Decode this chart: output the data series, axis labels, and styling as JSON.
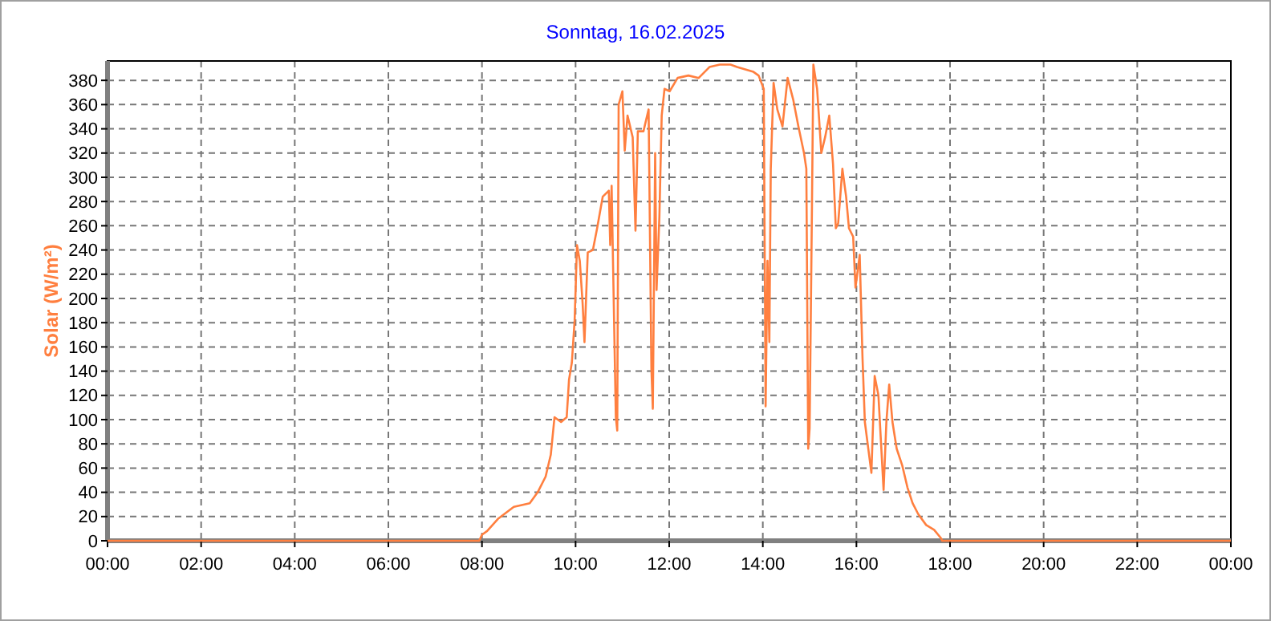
{
  "chart_data": {
    "type": "line",
    "title": "Sonntag, 16.02.2025",
    "ylabel": "Solar (W/m²)",
    "xlim": [
      0,
      24
    ],
    "ylim": [
      0,
      396
    ],
    "xticks": [
      {
        "value": 0,
        "label": "00:00"
      },
      {
        "value": 2,
        "label": "02:00"
      },
      {
        "value": 4,
        "label": "04:00"
      },
      {
        "value": 6,
        "label": "06:00"
      },
      {
        "value": 8,
        "label": "08:00"
      },
      {
        "value": 10,
        "label": "10:00"
      },
      {
        "value": 12,
        "label": "12:00"
      },
      {
        "value": 14,
        "label": "14:00"
      },
      {
        "value": 16,
        "label": "16:00"
      },
      {
        "value": 18,
        "label": "18:00"
      },
      {
        "value": 20,
        "label": "20:00"
      },
      {
        "value": 22,
        "label": "22:00"
      },
      {
        "value": 24,
        "label": "00:00"
      }
    ],
    "yticks": [
      0,
      20,
      40,
      60,
      80,
      100,
      120,
      140,
      160,
      180,
      200,
      220,
      240,
      260,
      280,
      300,
      320,
      340,
      360,
      380
    ],
    "grid": true,
    "marker": "none",
    "line_style": "solid",
    "series": [
      {
        "color": "#ff7f3f",
        "x": [
          0,
          7.94,
          8.0,
          8.11,
          8.34,
          8.68,
          9.02,
          9.19,
          9.36,
          9.47,
          9.55,
          9.69,
          9.81,
          9.86,
          9.92,
          9.98,
          10.03,
          10.09,
          10.15,
          10.19,
          10.26,
          10.37,
          10.46,
          10.58,
          10.71,
          10.74,
          10.77,
          10.86,
          10.89,
          10.92,
          11.0,
          11.05,
          11.11,
          11.22,
          11.28,
          11.33,
          11.45,
          11.56,
          11.62,
          11.65,
          11.7,
          11.73,
          11.79,
          11.84,
          11.9,
          12.01,
          12.18,
          12.41,
          12.63,
          12.86,
          13.08,
          13.31,
          13.45,
          13.8,
          13.91,
          14.02,
          14.06,
          14.1,
          14.14,
          14.17,
          14.23,
          14.31,
          14.42,
          14.53,
          14.65,
          14.76,
          14.88,
          14.93,
          14.97,
          15.0,
          15.05,
          15.08,
          15.16,
          15.25,
          15.33,
          15.42,
          15.5,
          15.56,
          15.61,
          15.7,
          15.78,
          15.84,
          15.93,
          15.98,
          16.07,
          16.13,
          16.18,
          16.24,
          16.32,
          16.39,
          16.47,
          16.58,
          16.64,
          16.7,
          16.77,
          16.86,
          16.98,
          17.09,
          17.2,
          17.32,
          17.49,
          17.66,
          17.81,
          17.83,
          24
        ],
        "values": [
          0,
          0,
          5,
          8,
          18,
          28,
          31,
          40,
          53,
          71,
          102,
          98,
          102,
          133,
          147,
          182,
          244,
          231,
          196,
          164,
          238,
          240,
          258,
          284,
          289,
          244,
          293,
          102,
          91,
          360,
          371,
          322,
          351,
          333,
          256,
          338,
          338,
          356,
          142,
          109,
          320,
          207,
          267,
          351,
          373,
          371,
          382,
          384,
          382,
          391,
          393,
          393,
          391,
          387,
          384,
          373,
          111,
          231,
          164,
          307,
          378,
          356,
          342,
          382,
          364,
          342,
          320,
          307,
          76,
          93,
          276,
          393,
          373,
          320,
          333,
          351,
          311,
          258,
          262,
          307,
          284,
          258,
          251,
          209,
          236,
          151,
          98,
          80,
          56,
          136,
          120,
          42,
          98,
          129,
          98,
          76,
          62,
          44,
          31,
          22,
          13,
          9,
          2,
          0,
          0
        ]
      }
    ]
  }
}
